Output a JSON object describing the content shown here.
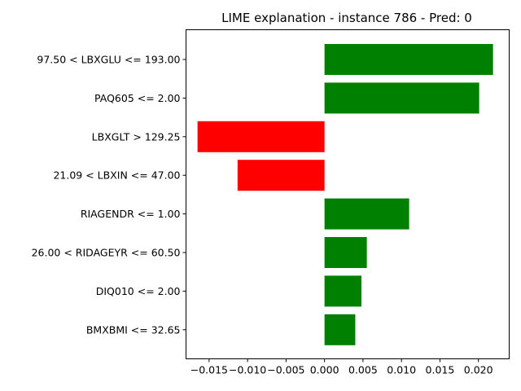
{
  "chart_data": {
    "type": "bar",
    "orientation": "horizontal",
    "title": "LIME explanation - instance 786 - Pred: 0",
    "xlabel": "",
    "ylabel": "",
    "xlim": [
      -0.018,
      0.024
    ],
    "grid": false,
    "legend": "none",
    "categories": [
      "97.50 < LBXGLU <= 193.00",
      "PAQ605 <= 2.00",
      "LBXGLT > 129.25",
      "21.09 < LBXIN <= 47.00",
      "RIAGENDR <= 1.00",
      "26.00 < RIDAGEYR <= 60.50",
      "DIQ010 <= 2.00",
      "BMXBMI <= 32.65"
    ],
    "values": [
      0.0219,
      0.0201,
      -0.0165,
      -0.0113,
      0.011,
      0.0055,
      0.0048,
      0.004
    ],
    "xticks": [
      -0.015,
      -0.01,
      -0.005,
      0.0,
      0.005,
      0.01,
      0.015,
      0.02
    ],
    "xtick_labels": [
      "−0.015",
      "−0.010",
      "−0.005",
      "0.000",
      "0.005",
      "0.010",
      "0.015",
      "0.020"
    ],
    "colors": {
      "positive": "#008000",
      "negative": "#ff0000"
    }
  }
}
